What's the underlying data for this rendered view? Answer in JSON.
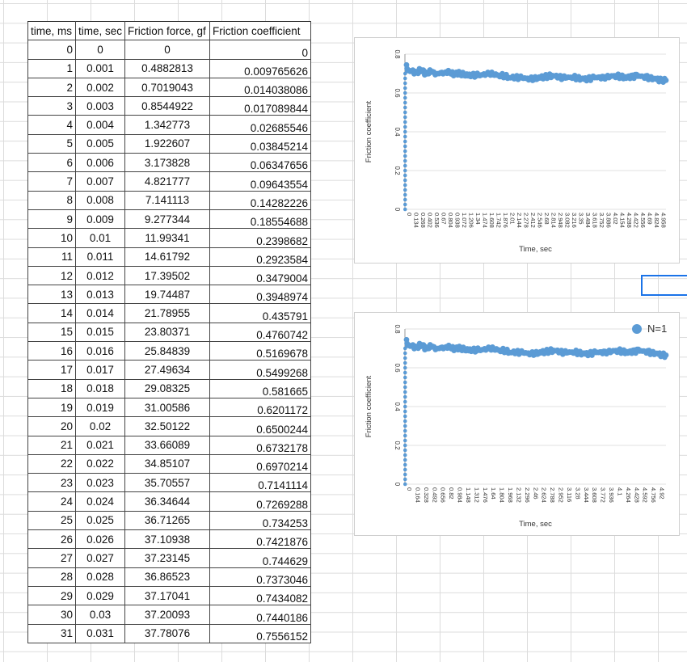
{
  "sheet": {
    "headers": [
      "time, ms",
      "time, sec",
      "Friction force, gf",
      "Friction coefficient"
    ],
    "rows": [
      [
        "0",
        "0",
        "0",
        "0"
      ],
      [
        "1",
        "0.001",
        "0.4882813",
        "0.009765626"
      ],
      [
        "2",
        "0.002",
        "0.7019043",
        "0.014038086"
      ],
      [
        "3",
        "0.003",
        "0.8544922",
        "0.017089844"
      ],
      [
        "4",
        "0.004",
        "1.342773",
        "0.02685546"
      ],
      [
        "5",
        "0.005",
        "1.922607",
        "0.03845214"
      ],
      [
        "6",
        "0.006",
        "3.173828",
        "0.06347656"
      ],
      [
        "7",
        "0.007",
        "4.821777",
        "0.09643554"
      ],
      [
        "8",
        "0.008",
        "7.141113",
        "0.14282226"
      ],
      [
        "9",
        "0.009",
        "9.277344",
        "0.18554688"
      ],
      [
        "10",
        "0.01",
        "11.99341",
        "0.2398682"
      ],
      [
        "11",
        "0.011",
        "14.61792",
        "0.2923584"
      ],
      [
        "12",
        "0.012",
        "17.39502",
        "0.3479004"
      ],
      [
        "13",
        "0.013",
        "19.74487",
        "0.3948974"
      ],
      [
        "14",
        "0.014",
        "21.78955",
        "0.435791"
      ],
      [
        "15",
        "0.015",
        "23.80371",
        "0.4760742"
      ],
      [
        "16",
        "0.016",
        "25.84839",
        "0.5169678"
      ],
      [
        "17",
        "0.017",
        "27.49634",
        "0.5499268"
      ],
      [
        "18",
        "0.018",
        "29.08325",
        "0.581665"
      ],
      [
        "19",
        "0.019",
        "31.00586",
        "0.6201172"
      ],
      [
        "20",
        "0.02",
        "32.50122",
        "0.6500244"
      ],
      [
        "21",
        "0.021",
        "33.66089",
        "0.6732178"
      ],
      [
        "22",
        "0.022",
        "34.85107",
        "0.6970214"
      ],
      [
        "23",
        "0.023",
        "35.70557",
        "0.7141114"
      ],
      [
        "24",
        "0.024",
        "36.34644",
        "0.7269288"
      ],
      [
        "25",
        "0.025",
        "36.71265",
        "0.734253"
      ],
      [
        "26",
        "0.026",
        "37.10938",
        "0.7421876"
      ],
      [
        "27",
        "0.027",
        "37.23145",
        "0.744629"
      ],
      [
        "28",
        "0.028",
        "36.86523",
        "0.7373046"
      ],
      [
        "29",
        "0.029",
        "37.17041",
        "0.7434082"
      ],
      [
        "30",
        "0.03",
        "37.20093",
        "0.7440186"
      ],
      [
        "31",
        "0.031",
        "37.78076",
        "0.7556152"
      ]
    ]
  },
  "chart_data": [
    {
      "type": "scatter",
      "xlabel": "Time, sec",
      "ylabel": "Friction coefficient",
      "ylim": [
        0,
        0.8
      ],
      "yticks": [
        "0",
        "0.2",
        "0.4",
        "0.6",
        "0.8"
      ],
      "xticks": [
        "0",
        "0.134",
        "0.268",
        "0.402",
        "0.536",
        "0.67",
        "0.804",
        "0.938",
        "1.072",
        "1.206",
        "1.34",
        "1.474",
        "1.608",
        "1.742",
        "1.876",
        "2.01",
        "2.144",
        "2.278",
        "2.412",
        "2.546",
        "2.68",
        "2.814",
        "2.948",
        "3.082",
        "3.216",
        "3.35",
        "3.484",
        "3.618",
        "3.752",
        "3.886",
        "4.02",
        "4.154",
        "4.288",
        "4.422",
        "4.556",
        "4.69",
        "4.824",
        "4.958"
      ],
      "color": "#5b9bd5",
      "series": [
        {
          "x": [
            0,
            0.01,
            0.02,
            0.03,
            0.05,
            0.1,
            0.2,
            0.3,
            0.4,
            0.5,
            0.6,
            0.7,
            0.8,
            0.9,
            1.0,
            1.2,
            1.4,
            1.6,
            1.8,
            2.0,
            2.2,
            2.4,
            2.6,
            2.8,
            3.0,
            3.2,
            3.4,
            3.6,
            3.8,
            4.0,
            4.2,
            4.4,
            4.6,
            4.8,
            4.958
          ],
          "y": [
            0,
            0.24,
            0.65,
            0.745,
            0.71,
            0.72,
            0.7,
            0.72,
            0.7,
            0.71,
            0.7,
            0.7,
            0.71,
            0.7,
            0.7,
            0.69,
            0.69,
            0.7,
            0.69,
            0.68,
            0.68,
            0.67,
            0.68,
            0.69,
            0.68,
            0.68,
            0.67,
            0.68,
            0.68,
            0.69,
            0.68,
            0.69,
            0.68,
            0.67,
            0.665
          ]
        }
      ]
    },
    {
      "type": "scatter",
      "xlabel": "Time, sec",
      "ylabel": "Friction coefficient",
      "ylim": [
        0,
        0.8
      ],
      "yticks": [
        "0",
        "0.2",
        "0.4",
        "0.6",
        "0.8"
      ],
      "xticks": [
        "0",
        "0.164",
        "0.328",
        "0.492",
        "0.656",
        "0.82",
        "0.984",
        "1.148",
        "1.312",
        "1.476",
        "1.64",
        "1.804",
        "1.968",
        "2.132",
        "2.296",
        "2.46",
        "2.624",
        "2.788",
        "2.952",
        "3.116",
        "3.28",
        "3.444",
        "3.608",
        "3.772",
        "3.936",
        "4.1",
        "4.264",
        "4.428",
        "4.592",
        "4.756",
        "4.92"
      ],
      "legend": "N=1",
      "color": "#5b9bd5",
      "series": [
        {
          "name": "N=1",
          "x": [
            0,
            0.01,
            0.02,
            0.03,
            0.05,
            0.1,
            0.2,
            0.3,
            0.4,
            0.5,
            0.6,
            0.7,
            0.8,
            0.9,
            1.0,
            1.2,
            1.4,
            1.6,
            1.8,
            2.0,
            2.2,
            2.4,
            2.6,
            2.8,
            3.0,
            3.2,
            3.4,
            3.6,
            3.8,
            4.0,
            4.2,
            4.4,
            4.6,
            4.8,
            4.92
          ],
          "y": [
            0,
            0.24,
            0.65,
            0.745,
            0.71,
            0.72,
            0.7,
            0.72,
            0.7,
            0.71,
            0.7,
            0.7,
            0.71,
            0.7,
            0.7,
            0.69,
            0.69,
            0.7,
            0.69,
            0.68,
            0.68,
            0.67,
            0.68,
            0.69,
            0.68,
            0.68,
            0.67,
            0.68,
            0.68,
            0.69,
            0.68,
            0.69,
            0.68,
            0.67,
            0.665
          ]
        }
      ]
    }
  ]
}
